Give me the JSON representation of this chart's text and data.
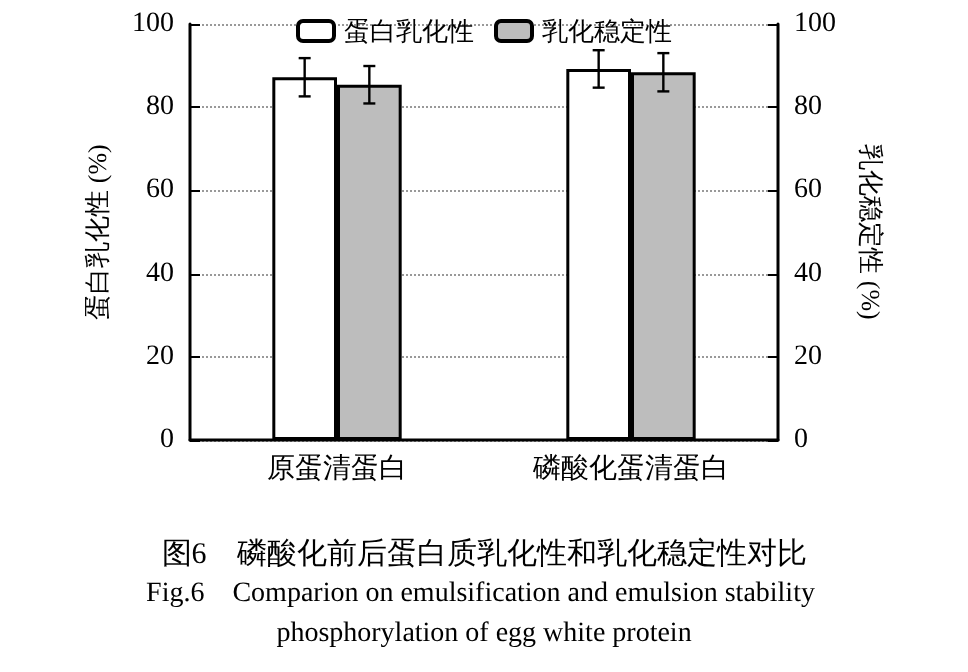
{
  "chart_data": {
    "type": "bar",
    "title": "图6　磷酸化前后蛋白质乳化性和乳化稳定性对比",
    "subtitle": "Fig.6　Comparion on emulsification and emulsion stability phosphorylation of egg white protein",
    "ylabel": "蛋白乳化性 (%)",
    "y2label": "乳化稳定性 (%)",
    "categories": [
      "原蛋清蛋白",
      "磷酸化蛋清蛋白"
    ],
    "series": [
      {
        "name": "蛋白乳化性",
        "color": "#ffffff",
        "values": [
          87.2,
          89.2
        ],
        "errors": [
          4.6,
          4.5
        ]
      },
      {
        "name": "乳化稳定性",
        "color": "#bdbdbd",
        "values": [
          85.4,
          88.4
        ],
        "errors": [
          4.5,
          4.6
        ]
      }
    ],
    "ylim": [
      0,
      100
    ],
    "yticks": [
      0,
      20,
      40,
      60,
      80,
      100
    ],
    "y2lim": [
      0,
      100
    ],
    "y2ticks": [
      0,
      20,
      40,
      60,
      80,
      100
    ],
    "grid": "y",
    "legend": "top"
  }
}
